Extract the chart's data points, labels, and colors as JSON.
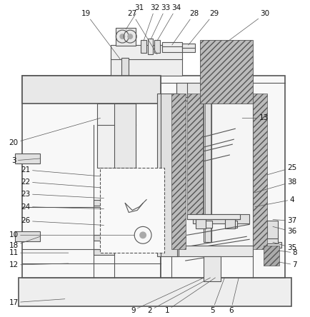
{
  "bg_color": "#ffffff",
  "line_color": "#555555",
  "label_color": "#111111",
  "fig_width": 4.34,
  "fig_height": 4.44,
  "dpi": 100
}
